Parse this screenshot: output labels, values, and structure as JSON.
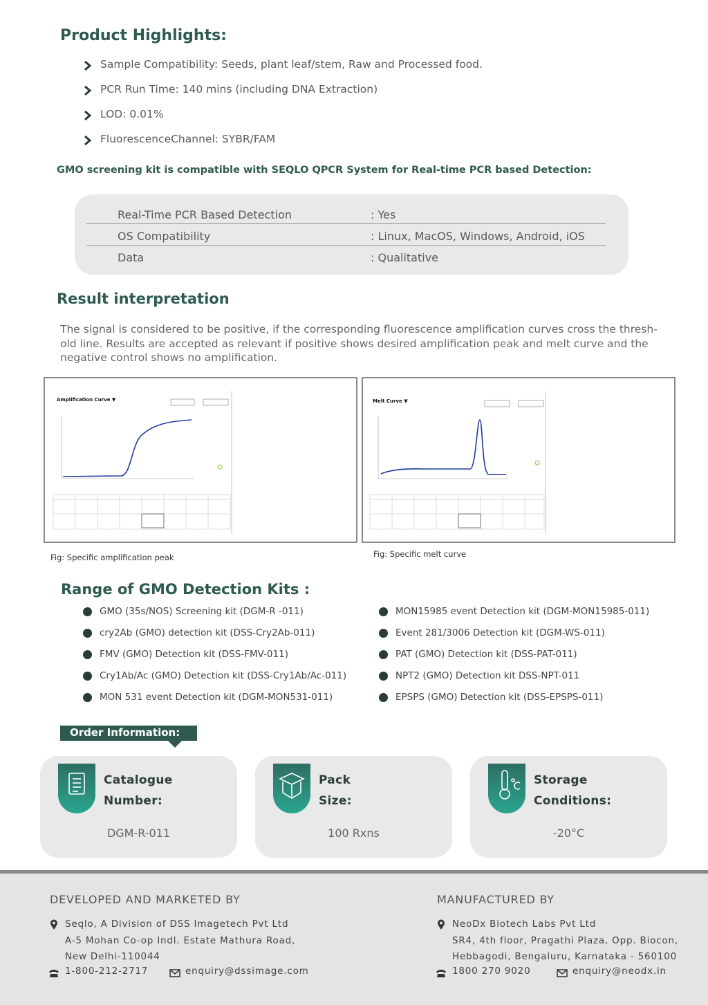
{
  "highlights": {
    "title": "Product Highlights:",
    "items": [
      "Sample Compatibility: Seeds, plant leaf/stem, Raw and Processed food.",
      "PCR Run Time: 140 mins  (including DNA Extraction)",
      "LOD: 0.01%",
      "FluorescenceChannel: SYBR/FAM"
    ]
  },
  "compat": {
    "heading": "GMO screening kit is compatible with SEQLO QPCR System  for Real-time PCR based Detection:",
    "rows": [
      [
        "Real-Time PCR Based Detection",
        ": Yes"
      ],
      [
        "OS Compatibility",
        ": Linux, MacOS, Windows, Android, iOS"
      ],
      [
        "Data",
        ": Qualitative"
      ]
    ]
  },
  "result": {
    "title": "Result interpretation",
    "lines": [
      "The signal is considered to be positive, if the corresponding fluorescence amplification curves cross the thresh-",
      "old line. Results are accepted as relevant if positive shows desired amplification peak and melt curve and the",
      "negative control shows no amplification."
    ]
  },
  "figures": [
    {
      "panel_title": "Amplification Curve ▼",
      "caption": "Fig: Specific amplification peak"
    },
    {
      "panel_title": "Melt Curve ▼",
      "caption": "Fig: Specific melt curve"
    }
  ],
  "kits": {
    "title": "Range of GMO Detection Kits :",
    "left": [
      "GMO (35s/NOS) Screening kit (DGM-R -011)",
      "cry2Ab (GMO) detection kit (DSS-Cry2Ab-011)",
      "FMV (GMO) Detection kit (DSS-FMV-011)",
      "Cry1Ab/Ac (GMO) Detection kit (DSS-Cry1Ab/Ac-011)",
      "MON 531 event Detection kit (DGM-MON531-011)"
    ],
    "right": [
      "MON15985 event Detection kit (DGM-MON15985-011)",
      "Event 281/3006 Detection kit (DGM-WS-011)",
      "PAT (GMO) Detection kit  (DSS-PAT-011)",
      "NPT2 (GMO) Detection kit DSS-NPT-011",
      "EPSPS (GMO) Detection kit (DSS-EPSPS-011)"
    ]
  },
  "order": {
    "title": "Order Information:",
    "cards": [
      {
        "label": [
          "Catalogue",
          "Number:"
        ],
        "value": "DGM-R-011"
      },
      {
        "label": [
          "Pack",
          "Size:"
        ],
        "value": "100 Rxns"
      },
      {
        "label": [
          "Storage",
          "Conditions:"
        ],
        "value": "-20°C"
      }
    ]
  },
  "footer": {
    "developed": {
      "title": "DEVELOPED AND MARKETED BY",
      "lines": [
        "Seqlo, A Division of DSS Imagetech Pvt Ltd",
        "A-5 Mohan Co-op Indl. Estate Mathura Road,",
        "New Delhi-110044"
      ],
      "phone": "1-800-212-2717",
      "email": "enquiry@dssimage.com"
    },
    "manufactured": {
      "title": "MANUFACTURED BY",
      "lines": [
        "NeoDx Biotech Labs Pvt Ltd",
        "SR4, 4th floor, Pragathi Plaza, Opp. Biocon,",
        "Hebbagodi, Bengaluru, Karnataka - 560100"
      ],
      "phone": "1800 270 9020",
      "email": "enquiry@neodx.in"
    }
  }
}
